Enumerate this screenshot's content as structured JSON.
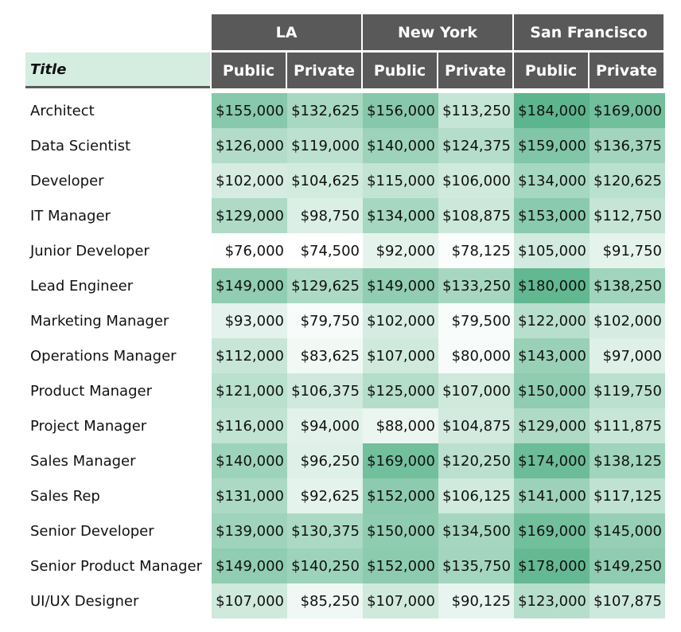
{
  "chart_data": {
    "type": "heatmap",
    "row_header": "Title",
    "groups": [
      "LA",
      "New York",
      "San Francisco"
    ],
    "subcolumns": [
      "Public",
      "Private"
    ],
    "rows": [
      "Architect",
      "Data Scientist",
      "Developer",
      "IT Manager",
      "Junior Developer",
      "Lead Engineer",
      "Marketing Manager",
      "Operations Manager",
      "Product Manager",
      "Project Manager",
      "Sales Manager",
      "Sales Rep",
      "Senior Developer",
      "Senior Product Manager",
      "UI/UX Designer"
    ],
    "values": [
      [
        155000,
        132625,
        156000,
        113250,
        184000,
        169000
      ],
      [
        126000,
        119000,
        140000,
        124375,
        159000,
        136375
      ],
      [
        102000,
        104625,
        115000,
        106000,
        134000,
        120625
      ],
      [
        129000,
        98750,
        134000,
        108875,
        153000,
        112750
      ],
      [
        76000,
        74500,
        92000,
        78125,
        105000,
        91750
      ],
      [
        149000,
        129625,
        149000,
        133250,
        180000,
        138250
      ],
      [
        93000,
        79750,
        102000,
        79500,
        122000,
        102000
      ],
      [
        112000,
        83625,
        107000,
        80000,
        143000,
        97000
      ],
      [
        121000,
        106375,
        125000,
        107000,
        150000,
        119750
      ],
      [
        116000,
        94000,
        88000,
        104875,
        129000,
        111875
      ],
      [
        140000,
        96250,
        169000,
        120250,
        174000,
        138125
      ],
      [
        131000,
        92625,
        152000,
        106125,
        141000,
        117125
      ],
      [
        139000,
        130375,
        150000,
        134500,
        169000,
        145000
      ],
      [
        149000,
        140250,
        152000,
        135750,
        178000,
        149250
      ],
      [
        107000,
        85250,
        107000,
        90125,
        123000,
        107875
      ]
    ],
    "value_format": "currency_usd",
    "color_scale": {
      "low": "#ffffff",
      "high": "#5cb58c"
    }
  }
}
